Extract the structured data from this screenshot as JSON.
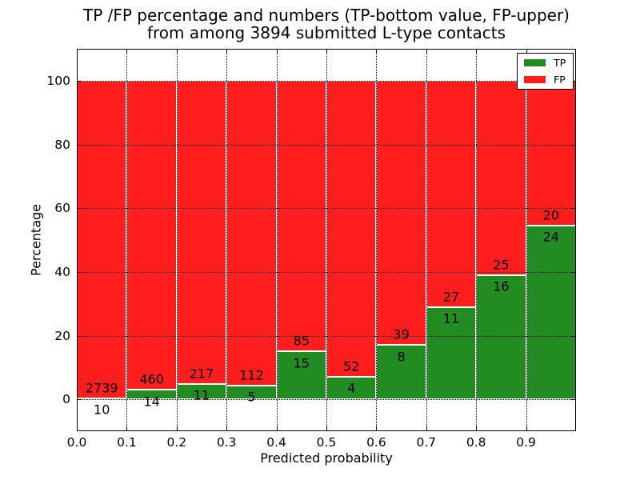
{
  "title": {
    "line1": "TP /FP percentage and numbers (TP-bottom value, FP-upper)",
    "line2": "from among 3894 submitted L-type contacts"
  },
  "axes": {
    "xlabel": "Predicted probability",
    "ylabel": "Percentage"
  },
  "legend": {
    "items": [
      {
        "label": "TP",
        "color": "#228b22"
      },
      {
        "label": "FP",
        "color": "#ff1e1e"
      }
    ]
  },
  "colors": {
    "tp": "#228b22",
    "fp": "#ff1e1e",
    "bar_edge": "#ffffff",
    "grid": "#000000",
    "background": "#ffffff"
  },
  "chart_data": {
    "type": "bar",
    "stacked": true,
    "title": "TP /FP percentage and numbers (TP-bottom value, FP-upper) from among 3894 submitted L-type contacts",
    "total_contacts": 3894,
    "xlabel": "Predicted probability",
    "ylabel": "Percentage",
    "xlim": [
      0.0,
      1.0
    ],
    "ylim": [
      -10,
      110
    ],
    "grid": true,
    "legend_position": "upper right",
    "x_tick_values": [
      0.0,
      0.1,
      0.2,
      0.3,
      0.4,
      0.5,
      0.6,
      0.7,
      0.8,
      0.9
    ],
    "x_tick_labels": [
      "0.0",
      "0.1",
      "0.2",
      "0.3",
      "0.4",
      "0.5",
      "0.6",
      "0.7",
      "0.8",
      "0.9"
    ],
    "y_tick_values": [
      0,
      20,
      40,
      60,
      80,
      100
    ],
    "y_tick_labels": [
      "0",
      "20",
      "40",
      "60",
      "80",
      "100"
    ],
    "x_gridlines": [
      0.1,
      0.2,
      0.3,
      0.4,
      0.5,
      0.6,
      0.7,
      0.8,
      0.9
    ],
    "bin_width": 0.1,
    "bins": [
      {
        "range": [
          0.0,
          0.1
        ],
        "tp_count": 10,
        "fp_count": 2739,
        "tp_pct": 0.36,
        "fp_pct": 99.64
      },
      {
        "range": [
          0.1,
          0.2
        ],
        "tp_count": 14,
        "fp_count": 460,
        "tp_pct": 2.95,
        "fp_pct": 97.05
      },
      {
        "range": [
          0.2,
          0.3
        ],
        "tp_count": 11,
        "fp_count": 217,
        "tp_pct": 4.82,
        "fp_pct": 95.18
      },
      {
        "range": [
          0.3,
          0.4
        ],
        "tp_count": 5,
        "fp_count": 112,
        "tp_pct": 4.27,
        "fp_pct": 95.73
      },
      {
        "range": [
          0.4,
          0.5
        ],
        "tp_count": 15,
        "fp_count": 85,
        "tp_pct": 15.0,
        "fp_pct": 85.0
      },
      {
        "range": [
          0.5,
          0.6
        ],
        "tp_count": 4,
        "fp_count": 52,
        "tp_pct": 7.14,
        "fp_pct": 92.86
      },
      {
        "range": [
          0.6,
          0.7
        ],
        "tp_count": 8,
        "fp_count": 39,
        "tp_pct": 17.02,
        "fp_pct": 82.98
      },
      {
        "range": [
          0.7,
          0.8
        ],
        "tp_count": 11,
        "fp_count": 27,
        "tp_pct": 28.95,
        "fp_pct": 71.05
      },
      {
        "range": [
          0.8,
          0.9
        ],
        "tp_count": 16,
        "fp_count": 25,
        "tp_pct": 39.02,
        "fp_pct": 60.98
      },
      {
        "range": [
          0.9,
          1.0
        ],
        "tp_count": 24,
        "fp_count": 20,
        "tp_pct": 54.55,
        "fp_pct": 45.45
      }
    ],
    "series": [
      {
        "name": "TP",
        "color": "#228b22",
        "values": [
          0.36,
          2.95,
          4.82,
          4.27,
          15.0,
          7.14,
          17.02,
          28.95,
          39.02,
          54.55
        ]
      },
      {
        "name": "FP",
        "color": "#ff1e1e",
        "values": [
          99.64,
          97.05,
          95.18,
          95.73,
          85.0,
          92.86,
          82.98,
          71.05,
          60.98,
          45.45
        ]
      }
    ]
  }
}
